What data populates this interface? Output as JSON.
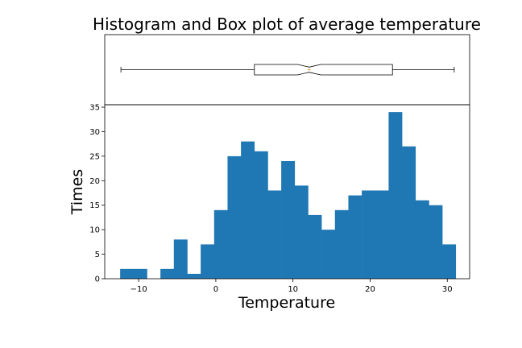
{
  "chart_data": {
    "title": "Histogram and Box plot of average temperature",
    "xlabel": "Temperature",
    "ylabel": "Times",
    "xlim": [
      -14.4,
      32.9
    ],
    "ylim": [
      0,
      35.5
    ],
    "box_plot": {
      "type": "box",
      "orientation": "horizontal",
      "notched": true,
      "whisker_low": -12.3,
      "q1": 5.0,
      "median": 12.1,
      "q3": 22.9,
      "whisker_high": 30.9,
      "notch_low": 10.6,
      "notch_high": 13.6,
      "median_color": "#ff7f0e"
    },
    "histogram": {
      "type": "bar",
      "color": "#1f77b4",
      "bin_start": -12.4,
      "bin_width": 1.74,
      "counts": [
        2,
        2,
        0,
        2,
        8,
        1,
        7,
        14,
        25,
        28,
        26,
        18,
        24,
        19,
        13,
        10,
        14,
        17,
        18,
        18,
        34,
        27,
        16,
        15,
        7
      ],
      "x_ticks": [
        -10,
        0,
        10,
        20,
        30
      ],
      "x_tick_labels": [
        "−10",
        "0",
        "10",
        "20",
        "30"
      ],
      "y_ticks": [
        0,
        5,
        10,
        15,
        20,
        25,
        30,
        35
      ],
      "y_tick_labels": [
        "0",
        "5",
        "10",
        "15",
        "20",
        "25",
        "30",
        "35"
      ]
    }
  }
}
